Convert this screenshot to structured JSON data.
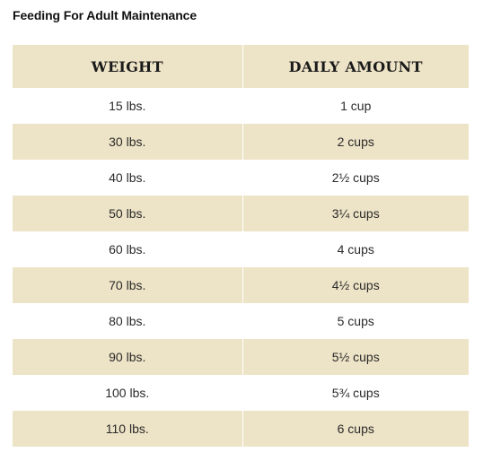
{
  "title": "Feeding For Adult Maintenance",
  "table": {
    "headers": {
      "weight": "WEIGHT",
      "amount": "DAILY AMOUNT"
    },
    "rows": [
      {
        "weight": "15 lbs.",
        "amount": "1 cup"
      },
      {
        "weight": "30 lbs.",
        "amount": "2 cups"
      },
      {
        "weight": "40 lbs.",
        "amount": "2½ cups"
      },
      {
        "weight": "50 lbs.",
        "amount": "3¼ cups"
      },
      {
        "weight": "60 lbs.",
        "amount": "4 cups"
      },
      {
        "weight": "70 lbs.",
        "amount": "4½ cups"
      },
      {
        "weight": "80 lbs.",
        "amount": "5 cups"
      },
      {
        "weight": "90 lbs.",
        "amount": "5½ cups"
      },
      {
        "weight": "100 lbs.",
        "amount": "5¾ cups"
      },
      {
        "weight": "110 lbs.",
        "amount": "6 cups"
      }
    ]
  },
  "colors": {
    "stripe": "#ede3c6",
    "background": "#ffffff",
    "text": "#1f1f1f"
  }
}
